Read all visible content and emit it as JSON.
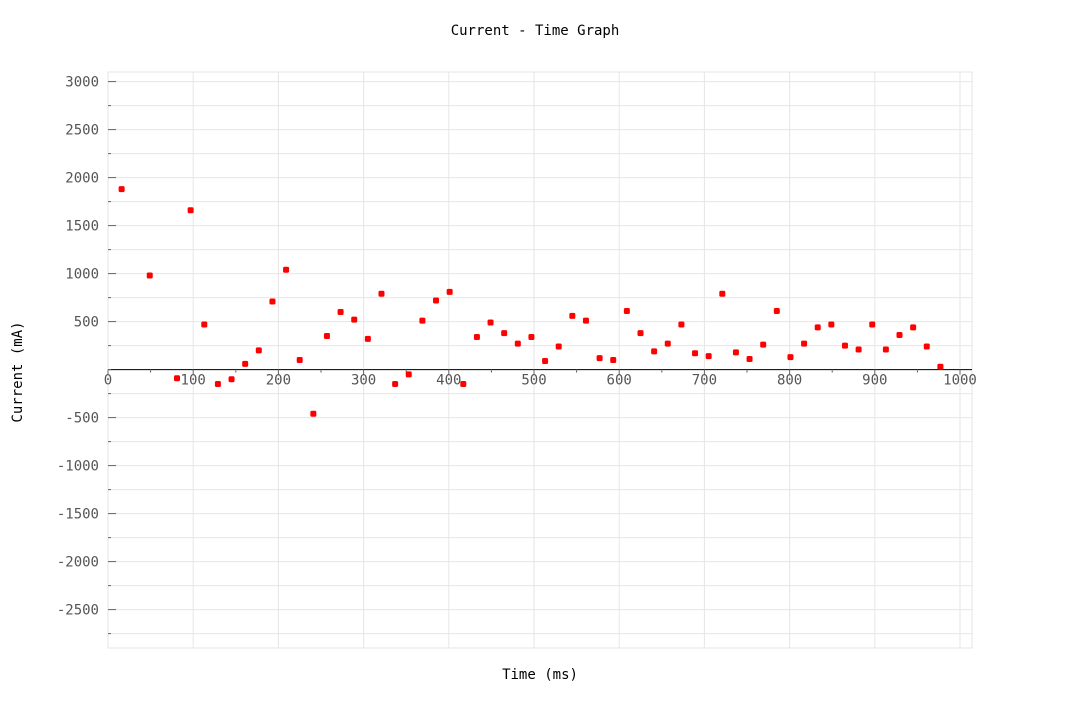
{
  "chart_data": {
    "type": "scatter",
    "title": "Current - Time Graph",
    "xlabel": "Time (ms)",
    "ylabel": "Current (mA)",
    "xlim": [
      0,
      1000
    ],
    "ylim": [
      -2900,
      3100
    ],
    "x_ticks": [
      0,
      100,
      200,
      300,
      400,
      500,
      600,
      700,
      800,
      900,
      1000
    ],
    "y_ticks": [
      3000,
      2500,
      2000,
      1500,
      1000,
      500,
      -500,
      -1000,
      -1500,
      -2000,
      -2500
    ],
    "grid": true,
    "marker_color": "#ff0000",
    "series": [
      {
        "points": [
          [
            16,
            1880
          ],
          [
            49,
            980
          ],
          [
            81,
            -90
          ],
          [
            97,
            1660
          ],
          [
            113,
            470
          ],
          [
            129,
            -150
          ],
          [
            145,
            -100
          ],
          [
            161,
            60
          ],
          [
            177,
            200
          ],
          [
            193,
            710
          ],
          [
            209,
            1040
          ],
          [
            225,
            100
          ],
          [
            241,
            -460
          ],
          [
            257,
            350
          ],
          [
            273,
            600
          ],
          [
            289,
            520
          ],
          [
            305,
            320
          ],
          [
            321,
            790
          ],
          [
            337,
            -150
          ],
          [
            353,
            -50
          ],
          [
            369,
            510
          ],
          [
            385,
            720
          ],
          [
            401,
            810
          ],
          [
            417,
            -150
          ],
          [
            433,
            340
          ],
          [
            449,
            490
          ],
          [
            465,
            380
          ],
          [
            481,
            270
          ],
          [
            497,
            340
          ],
          [
            513,
            90
          ],
          [
            529,
            240
          ],
          [
            545,
            560
          ],
          [
            561,
            510
          ],
          [
            577,
            120
          ],
          [
            593,
            100
          ],
          [
            609,
            610
          ],
          [
            625,
            380
          ],
          [
            641,
            190
          ],
          [
            657,
            270
          ],
          [
            673,
            470
          ],
          [
            689,
            170
          ],
          [
            705,
            140
          ],
          [
            721,
            790
          ],
          [
            737,
            180
          ],
          [
            753,
            110
          ],
          [
            769,
            260
          ],
          [
            785,
            610
          ],
          [
            801,
            130
          ],
          [
            817,
            270
          ],
          [
            833,
            440
          ],
          [
            849,
            470
          ],
          [
            865,
            250
          ],
          [
            881,
            210
          ],
          [
            897,
            470
          ],
          [
            913,
            210
          ],
          [
            929,
            360
          ],
          [
            945,
            440
          ],
          [
            961,
            240
          ],
          [
            977,
            30
          ]
        ]
      }
    ]
  }
}
